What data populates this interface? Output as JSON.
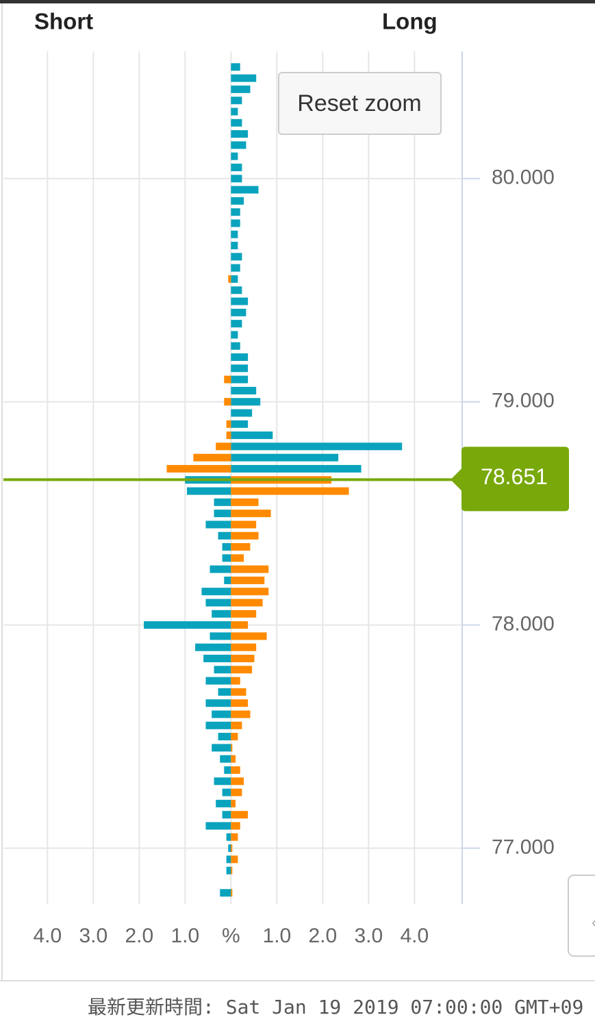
{
  "chart_data": {
    "type": "butterfly-bar",
    "short_label": "Short",
    "long_label": "Long",
    "reset_zoom": "Reset zoom",
    "footer": "最新更新時間: Sat Jan 19 2019 07:00:00 GMT+09",
    "current_price": 78.651,
    "current_price_color": "#78a80a",
    "grid": true,
    "xlim": [
      -4.96,
      5.04
    ],
    "xticks": [
      {
        "value": -4,
        "label": "4.0"
      },
      {
        "value": -3,
        "label": "3.0"
      },
      {
        "value": -2,
        "label": "2.0"
      },
      {
        "value": -1,
        "label": "1.0"
      },
      {
        "value": 0,
        "label": "%"
      },
      {
        "value": 1,
        "label": "1.0"
      },
      {
        "value": 2,
        "label": "2.0"
      },
      {
        "value": 3,
        "label": "3.0"
      },
      {
        "value": 4,
        "label": "4.0"
      }
    ],
    "ylim": [
      76.75,
      80.57
    ],
    "yticks": [
      {
        "value": 77,
        "label": "77.000"
      },
      {
        "value": 78,
        "label": "78.000"
      },
      {
        "value": 79,
        "label": "79.000"
      },
      {
        "value": 80,
        "label": "80.000"
      }
    ],
    "y": [
      80.5,
      80.45,
      80.4,
      80.35,
      80.3,
      80.25,
      80.2,
      80.15,
      80.1,
      80.05,
      80,
      79.95,
      79.9,
      79.85,
      79.8,
      79.75,
      79.7,
      79.65,
      79.6,
      79.55,
      79.5,
      79.45,
      79.4,
      79.35,
      79.3,
      79.25,
      79.2,
      79.15,
      79.1,
      79.05,
      79,
      78.95,
      78.9,
      78.85,
      78.8,
      78.75,
      78.7,
      78.65,
      78.6,
      78.55,
      78.5,
      78.45,
      78.4,
      78.35,
      78.3,
      78.25,
      78.2,
      78.15,
      78.1,
      78.05,
      78,
      77.95,
      77.9,
      77.85,
      77.8,
      77.75,
      77.7,
      77.65,
      77.6,
      77.55,
      77.5,
      77.45,
      77.4,
      77.35,
      77.3,
      77.25,
      77.2,
      77.15,
      77.1,
      77.05,
      77,
      76.95,
      76.9,
      76.85,
      76.8
    ],
    "series": [
      {
        "color": "#0aa3bd",
        "values": [
          0.2,
          0.55,
          0.42,
          0.24,
          0.15,
          0.24,
          0.37,
          0.33,
          0.15,
          0.24,
          0.24,
          0.6,
          0.28,
          0.2,
          0.2,
          0.15,
          0.15,
          0.24,
          0.2,
          0.15,
          0.24,
          0.37,
          0.33,
          0.24,
          0.15,
          0.2,
          0.37,
          0.37,
          0.37,
          0.55,
          0.64,
          0.46,
          0.37,
          0.91,
          3.73,
          2.34,
          2.84,
          -1.0,
          -0.96,
          -0.37,
          -0.37,
          -0.55,
          -0.28,
          -0.19,
          -0.19,
          -0.46,
          -0.15,
          -0.64,
          -0.55,
          -0.42,
          -1.9,
          -0.46,
          -0.78,
          -0.6,
          -0.37,
          -0.55,
          -0.28,
          -0.55,
          -0.42,
          -0.55,
          -0.28,
          -0.42,
          -0.24,
          -0.15,
          -0.37,
          -0.19,
          -0.33,
          -0.19,
          -0.55,
          -0.1,
          -0.06,
          -0.1,
          -0.1,
          null,
          -0.24
        ]
      },
      {
        "color": "#ff8a00",
        "values": [
          null,
          null,
          null,
          null,
          null,
          null,
          null,
          null,
          null,
          null,
          null,
          null,
          null,
          null,
          null,
          null,
          null,
          null,
          null,
          -0.06,
          null,
          null,
          null,
          null,
          null,
          null,
          null,
          null,
          -0.15,
          null,
          -0.15,
          null,
          -0.1,
          -0.1,
          -0.33,
          -0.82,
          -1.4,
          2.19,
          2.57,
          0.6,
          0.87,
          0.55,
          0.6,
          0.42,
          0.28,
          0.82,
          0.73,
          0.82,
          0.69,
          0.55,
          0.37,
          0.78,
          0.55,
          0.51,
          0.46,
          0.2,
          0.33,
          0.37,
          0.42,
          0.24,
          0.15,
          0.03,
          0.1,
          0.2,
          0.28,
          0.24,
          0.1,
          0.37,
          0.2,
          0.15,
          0.03,
          0.15,
          0.03,
          null,
          0.03
        ]
      }
    ]
  }
}
